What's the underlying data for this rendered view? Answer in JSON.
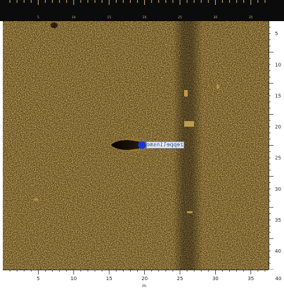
{
  "top_ruler": {
    "labels": [
      "5",
      "10",
      "15",
      "20",
      "25",
      "30",
      "35"
    ]
  },
  "side_ruler": {
    "labels": [
      "5",
      "10",
      "15",
      "20",
      "25",
      "30",
      "35",
      "40"
    ]
  },
  "bottom_ruler": {
    "labels": [
      "5",
      "10",
      "15",
      "20",
      "25",
      "30",
      "35",
      "40"
    ],
    "unit": "m"
  },
  "target_label": "zeppelinsmonsters",
  "colors": {
    "sonar_dark": "#3a2a0c",
    "sonar_mid": "#7a5a1e",
    "sonar_bright": "#c89a3a",
    "marker": "#1536d6",
    "top_bar": "#0b0b0b"
  }
}
